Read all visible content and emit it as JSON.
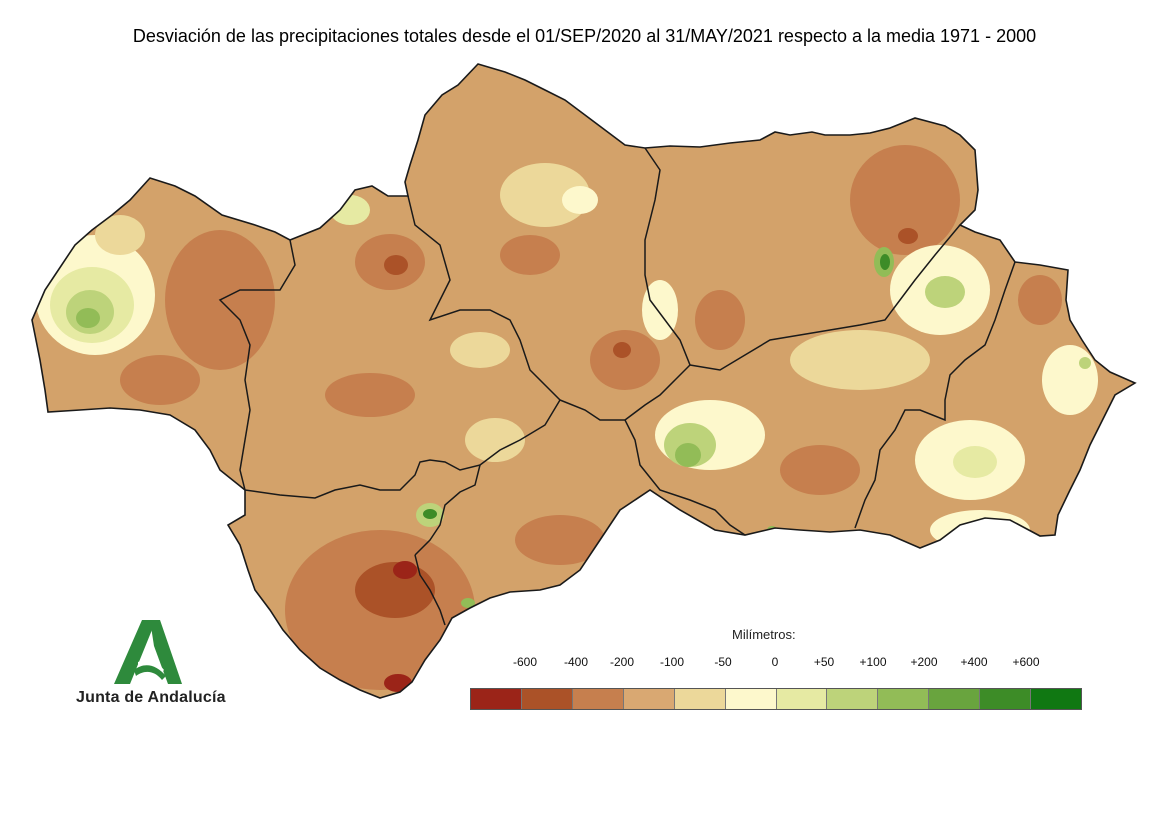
{
  "title": "Desviación de las precipitaciones totales desde el 01/SEP/2020 al 31/MAY/2021 respecto a la media 1971 - 2000",
  "logo": {
    "text": "Junta de Andalucía",
    "color": "#2e8a3c"
  },
  "legend": {
    "title": "Milímetros:",
    "labels": [
      "-600",
      "-400",
      "-200",
      "-100",
      "-50",
      "0",
      "+50",
      "+100",
      "+200",
      "+400",
      "+600"
    ],
    "colors": [
      "#9b2418",
      "#ab5228",
      "#c67f4e",
      "#d9a872",
      "#ecd89a",
      "#fdf8cc",
      "#e6eaa3",
      "#bdd37a",
      "#92bc57",
      "#69a43e",
      "#3d8c27",
      "#107812"
    ]
  },
  "map": {
    "region": "Andalucía",
    "base_color": "#d3a26a",
    "border_color": "#1a1a1a"
  }
}
